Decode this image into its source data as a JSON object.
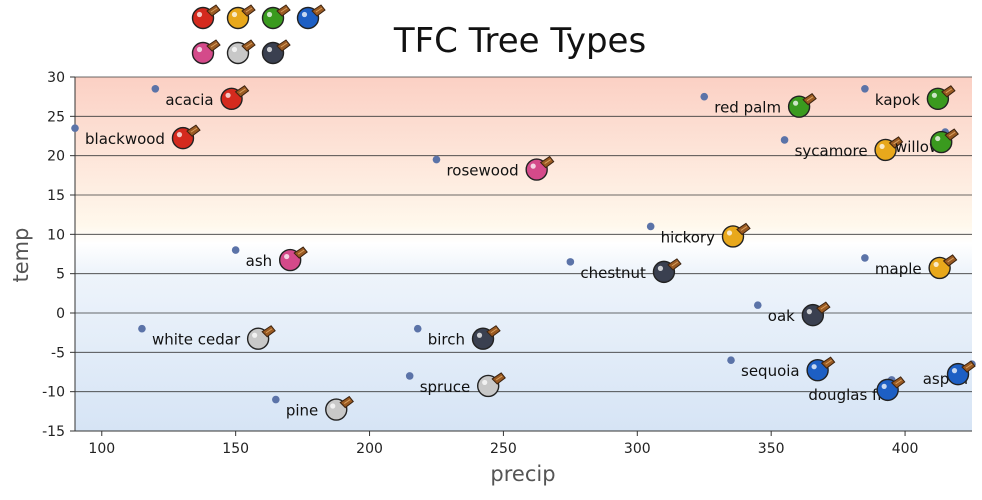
{
  "chart_data": {
    "type": "scatter",
    "title": "TFC Tree Types",
    "xlabel": "precip",
    "ylabel": "temp",
    "xlim": [
      90,
      425
    ],
    "ylim": [
      -15,
      30
    ],
    "x_ticks": [
      100,
      150,
      200,
      250,
      300,
      350,
      400
    ],
    "y_ticks": [
      30,
      25,
      20,
      15,
      10,
      5,
      0,
      -5,
      -10,
      -15
    ],
    "grid": "horizontal",
    "legend": "top-left",
    "legend_colors": [
      "#d42a1e",
      "#e8a81c",
      "#3a9a1e",
      "#1d5fc4",
      "#d44a8a",
      "#c8c8c8",
      "#3a4050"
    ],
    "points": [
      {
        "name": "acacia",
        "x": 120,
        "y": 28.5,
        "color": "#d42a1e"
      },
      {
        "name": "blackwood",
        "x": 90,
        "y": 23.5,
        "color": "#d42a1e"
      },
      {
        "name": "rosewood",
        "x": 225,
        "y": 19.5,
        "color": "#d44a8a"
      },
      {
        "name": "ash",
        "x": 150,
        "y": 8,
        "color": "#d44a8a"
      },
      {
        "name": "white cedar",
        "x": 115,
        "y": -2,
        "color": "#c8c8c8"
      },
      {
        "name": "birch",
        "x": 218,
        "y": -2,
        "color": "#3a4050"
      },
      {
        "name": "spruce",
        "x": 215,
        "y": -8,
        "color": "#c8c8c8"
      },
      {
        "name": "pine",
        "x": 165,
        "y": -11,
        "color": "#c8c8c8"
      },
      {
        "name": "chestnut",
        "x": 275,
        "y": 6.5,
        "color": "#3a4050"
      },
      {
        "name": "hickory",
        "x": 305,
        "y": 11,
        "color": "#e8a81c"
      },
      {
        "name": "red palm",
        "x": 325,
        "y": 27.5,
        "color": "#3a9a1e"
      },
      {
        "name": "sycamore",
        "x": 355,
        "y": 22,
        "color": "#e8a81c"
      },
      {
        "name": "kapok",
        "x": 385,
        "y": 28.5,
        "color": "#3a9a1e"
      },
      {
        "name": "willow",
        "x": 415,
        "y": 23,
        "color": "#3a9a1e"
      },
      {
        "name": "maple",
        "x": 385,
        "y": 7,
        "color": "#e8a81c"
      },
      {
        "name": "oak",
        "x": 345,
        "y": 1,
        "color": "#3a4050"
      },
      {
        "name": "sequoia",
        "x": 335,
        "y": -6,
        "color": "#1d5fc4"
      },
      {
        "name": "aspen",
        "x": 425,
        "y": -6.5,
        "color": "#1d5fc4"
      },
      {
        "name": "douglas fir",
        "x": 395,
        "y": -8.5,
        "color": "#1d5fc4"
      }
    ]
  }
}
